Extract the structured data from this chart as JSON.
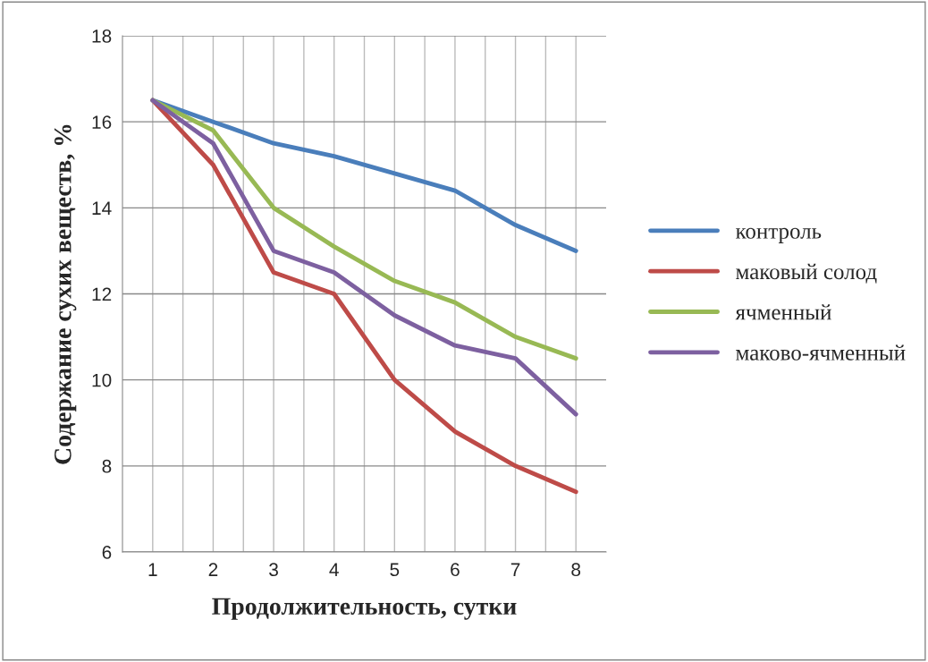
{
  "chart_data": {
    "type": "line",
    "xlabel": "Продолжительность, сутки",
    "ylabel": "Содержание сухих веществ, %",
    "categories": [
      "1",
      "2",
      "3",
      "4",
      "5",
      "6",
      "7",
      "8"
    ],
    "series": [
      {
        "name": "контроль",
        "color": "#4a7ebb",
        "values": [
          16.5,
          16.0,
          15.5,
          15.2,
          14.8,
          14.4,
          13.6,
          13.0
        ]
      },
      {
        "name": "маковый солод",
        "color": "#be4b48",
        "values": [
          16.5,
          15.0,
          12.5,
          12.0,
          10.0,
          8.8,
          8.0,
          7.4
        ]
      },
      {
        "name": "ячменный",
        "color": "#98b954",
        "values": [
          16.5,
          15.8,
          14.0,
          13.1,
          12.3,
          11.8,
          11.0,
          10.5
        ]
      },
      {
        "name": "маково-ячменный",
        "color": "#7d60a0",
        "values": [
          16.5,
          15.5,
          13.0,
          12.5,
          11.5,
          10.8,
          10.5,
          9.2
        ]
      }
    ],
    "ylim": [
      6,
      18
    ],
    "yticks": [
      6,
      8,
      10,
      12,
      14,
      16,
      18
    ],
    "grid": true,
    "legend": "right",
    "marker": "none",
    "line_style": "solid"
  }
}
